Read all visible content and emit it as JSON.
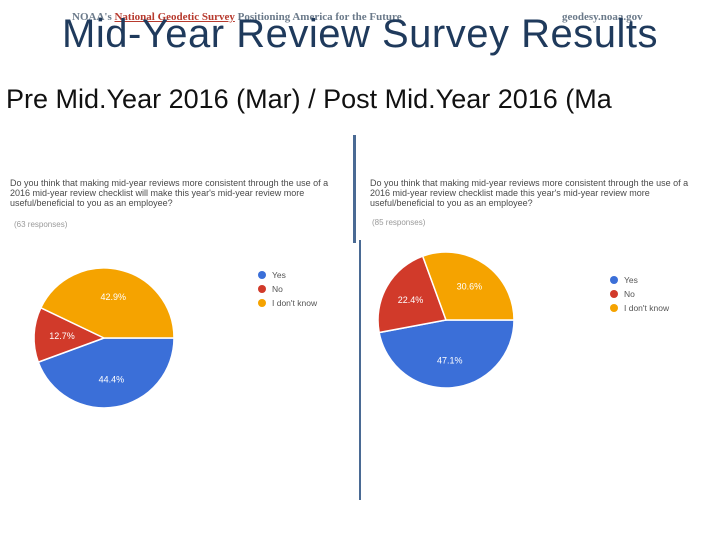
{
  "banner": {
    "left_prefix": "NOAA's",
    "left_org": "National Geodetic Survey",
    "left_tagline": "Positioning America for the Future",
    "right": "geodesy.noaa.gov"
  },
  "title": "Mid-Year Review Survey Results",
  "subtitle": "Pre Mid.Year 2016 (Mar) / Post Mid.Year 2016 (Ma",
  "colors": {
    "yes": "#3b6fd8",
    "no": "#d13a2a",
    "dont_know": "#f5a300"
  },
  "chart_data": [
    {
      "type": "pie",
      "question": "Do you think that making mid-year reviews more consistent through the use of a 2016 mid-year review checklist will make this year's mid-year review more useful/beneficial to you as an employee?",
      "responses": "(63 responses)",
      "legend_position": "right",
      "labels": [
        "Yes",
        "No",
        "I don't know"
      ],
      "values": [
        44.4,
        12.7,
        42.9
      ],
      "value_labels": [
        "44.4%",
        "12.7%",
        "42.9%"
      ]
    },
    {
      "type": "pie",
      "question": "Do you think that making mid-year reviews more consistent through the use of a 2016 mid-year review checklist made this year's mid-year review more useful/beneficial to you as an employee?",
      "responses": "(85 responses)",
      "legend_position": "right",
      "labels": [
        "Yes",
        "No",
        "I don't know"
      ],
      "values": [
        47.1,
        22.4,
        30.6
      ],
      "value_labels": [
        "47.1%",
        "22.4%",
        "30.6%"
      ]
    }
  ]
}
